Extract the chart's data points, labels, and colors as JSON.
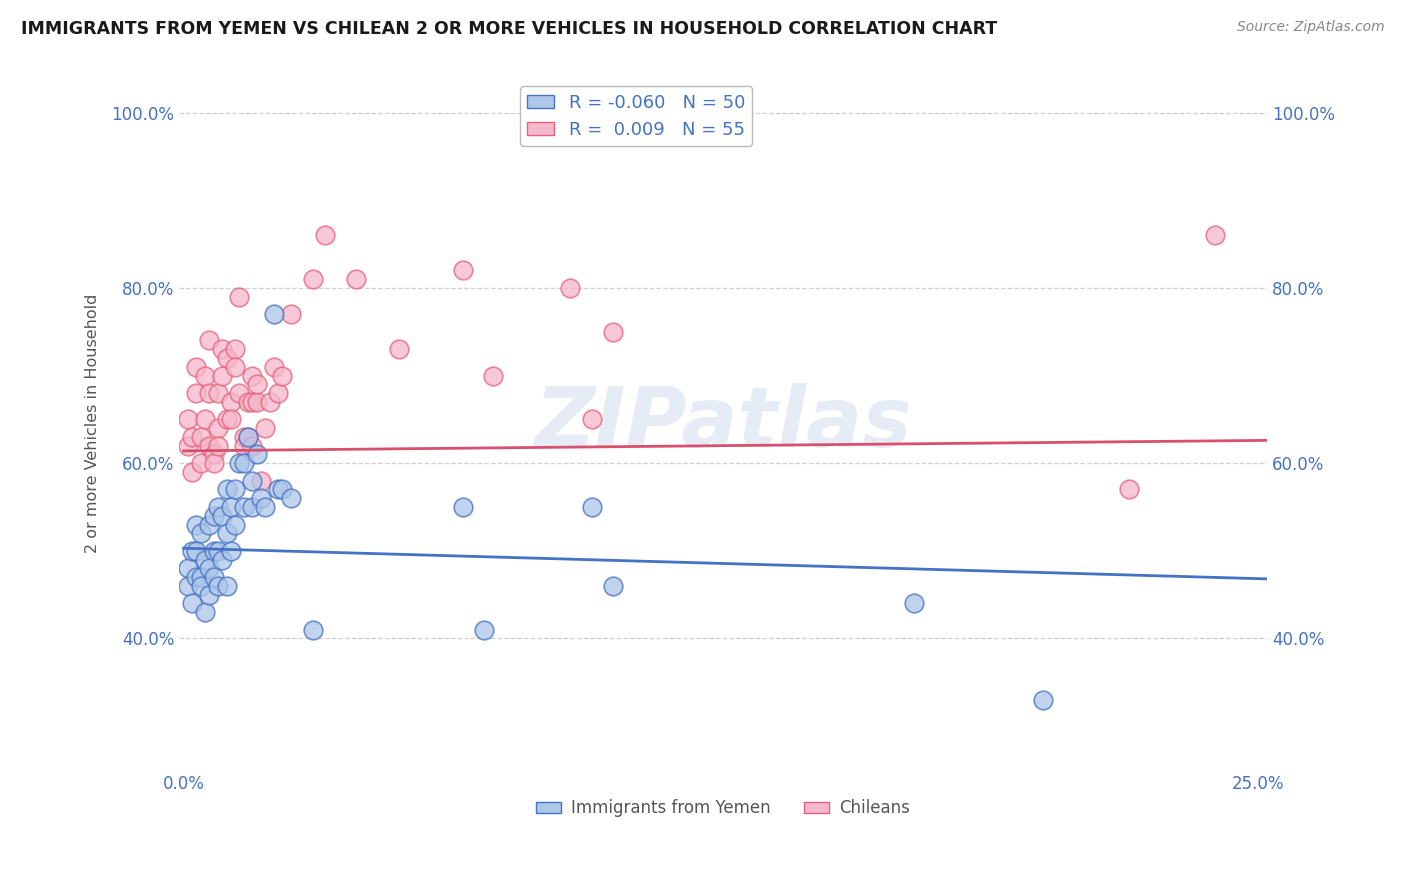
{
  "title": "IMMIGRANTS FROM YEMEN VS CHILEAN 2 OR MORE VEHICLES IN HOUSEHOLD CORRELATION CHART",
  "source": "Source: ZipAtlas.com",
  "ylabel": "2 or more Vehicles in Household",
  "legend1_label": "Immigrants from Yemen",
  "legend2_label": "Chileans",
  "legend_r1": "R = -0.060",
  "legend_n1": "N = 50",
  "legend_r2": "R =  0.009",
  "legend_n2": "N = 55",
  "xlim": [
    -0.001,
    0.252
  ],
  "ylim": [
    0.25,
    1.04
  ],
  "x_ticks": [
    0.0,
    0.05,
    0.1,
    0.15,
    0.2,
    0.25
  ],
  "x_tick_labels_show": [
    "0.0%",
    "",
    "",
    "",
    "",
    "25.0%"
  ],
  "y_ticks": [
    0.4,
    0.6,
    0.8,
    1.0
  ],
  "y_tick_labels_show": [
    "40.0%",
    "60.0%",
    "80.0%",
    "100.0%"
  ],
  "watermark": "ZIPatlas",
  "blue_face": "#aec6e8",
  "blue_edge": "#4472c4",
  "pink_face": "#f5b8cb",
  "pink_edge": "#e8607a",
  "blue_line": "#4472c4",
  "pink_line": "#d94f6e",
  "grid_color": "#d0d0d0",
  "axis_tick_color": "#4472c4",
  "blue_scatter_x": [
    0.001,
    0.001,
    0.002,
    0.002,
    0.003,
    0.003,
    0.003,
    0.004,
    0.004,
    0.004,
    0.005,
    0.005,
    0.006,
    0.006,
    0.006,
    0.007,
    0.007,
    0.007,
    0.008,
    0.008,
    0.008,
    0.009,
    0.009,
    0.01,
    0.01,
    0.01,
    0.011,
    0.011,
    0.012,
    0.012,
    0.013,
    0.014,
    0.014,
    0.015,
    0.016,
    0.016,
    0.017,
    0.018,
    0.019,
    0.021,
    0.022,
    0.023,
    0.025,
    0.03,
    0.065,
    0.07,
    0.095,
    0.1,
    0.17,
    0.2
  ],
  "blue_scatter_y": [
    0.48,
    0.46,
    0.5,
    0.44,
    0.47,
    0.5,
    0.53,
    0.47,
    0.46,
    0.52,
    0.43,
    0.49,
    0.45,
    0.48,
    0.53,
    0.47,
    0.5,
    0.54,
    0.46,
    0.5,
    0.55,
    0.49,
    0.54,
    0.46,
    0.52,
    0.57,
    0.5,
    0.55,
    0.53,
    0.57,
    0.6,
    0.55,
    0.6,
    0.63,
    0.55,
    0.58,
    0.61,
    0.56,
    0.55,
    0.77,
    0.57,
    0.57,
    0.56,
    0.41,
    0.55,
    0.41,
    0.55,
    0.46,
    0.44,
    0.33
  ],
  "pink_scatter_x": [
    0.001,
    0.001,
    0.002,
    0.002,
    0.003,
    0.003,
    0.004,
    0.004,
    0.005,
    0.005,
    0.006,
    0.006,
    0.006,
    0.007,
    0.007,
    0.008,
    0.008,
    0.008,
    0.009,
    0.009,
    0.01,
    0.01,
    0.011,
    0.011,
    0.012,
    0.012,
    0.013,
    0.013,
    0.014,
    0.014,
    0.015,
    0.015,
    0.016,
    0.016,
    0.016,
    0.017,
    0.017,
    0.018,
    0.019,
    0.02,
    0.021,
    0.022,
    0.023,
    0.025,
    0.03,
    0.033,
    0.04,
    0.05,
    0.065,
    0.072,
    0.09,
    0.095,
    0.1,
    0.22,
    0.24
  ],
  "pink_scatter_y": [
    0.62,
    0.65,
    0.63,
    0.59,
    0.71,
    0.68,
    0.63,
    0.6,
    0.65,
    0.7,
    0.62,
    0.74,
    0.68,
    0.61,
    0.6,
    0.64,
    0.62,
    0.68,
    0.7,
    0.73,
    0.65,
    0.72,
    0.67,
    0.65,
    0.73,
    0.71,
    0.79,
    0.68,
    0.63,
    0.62,
    0.67,
    0.63,
    0.62,
    0.67,
    0.7,
    0.67,
    0.69,
    0.58,
    0.64,
    0.67,
    0.71,
    0.68,
    0.7,
    0.77,
    0.81,
    0.86,
    0.81,
    0.73,
    0.82,
    0.7,
    0.8,
    0.65,
    0.75,
    0.57,
    0.86
  ],
  "blue_trend": [
    0.0,
    0.252,
    0.503,
    0.468
  ],
  "pink_trend": [
    0.0,
    0.252,
    0.614,
    0.626
  ],
  "figsize": [
    14.06,
    8.92
  ],
  "dpi": 100
}
